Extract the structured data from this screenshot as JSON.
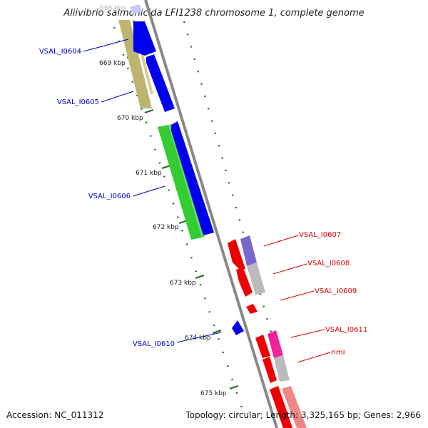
{
  "title": "Aliivibrio salmonicida LFI1238 chromosome 1, complete genome",
  "footer": {
    "accession": "Accession: NC_011312",
    "summary": "Topology: circular; Length: 3,325,165 bp; Genes: 2,966"
  },
  "ticks": [
    {
      "label": "668 kbp"
    },
    {
      "label": "669 kbp"
    },
    {
      "label": "670 kbp"
    },
    {
      "label": "671 kbp"
    },
    {
      "label": "672 kbp"
    },
    {
      "label": "673 kbp"
    },
    {
      "label": "674 kbp"
    },
    {
      "label": "675 kbp"
    }
  ],
  "genes_left": [
    {
      "label": "VSAL_I0604",
      "color": "#0000cc"
    },
    {
      "label": "VSAL_I0605",
      "color": "#0000cc"
    },
    {
      "label": "VSAL_I0606",
      "color": "#0000cc"
    },
    {
      "label": "VSAL_I0610",
      "color": "#0000cc"
    }
  ],
  "genes_right": [
    {
      "label": "VSAL_I0607",
      "color": "#dd0000"
    },
    {
      "label": "VSAL_I0608",
      "color": "#dd0000"
    },
    {
      "label": "VSAL_I0609",
      "color": "#dd0000"
    },
    {
      "label": "VSAL_I0611",
      "color": "#dd0000"
    },
    {
      "label": "rimI",
      "color": "#dd0000"
    }
  ],
  "colors": {
    "forward_strand": "#0000ee",
    "reverse_strand": "#ee0000",
    "cog_olive": "#bdb472",
    "cog_green": "#33cc33",
    "cog_purple": "#7766cc",
    "cog_grey": "#bbbbbb",
    "cog_magenta": "#ee2299",
    "cog_pink": "#ee8888",
    "backbone": "#888888",
    "gc_dots": "#226622"
  }
}
